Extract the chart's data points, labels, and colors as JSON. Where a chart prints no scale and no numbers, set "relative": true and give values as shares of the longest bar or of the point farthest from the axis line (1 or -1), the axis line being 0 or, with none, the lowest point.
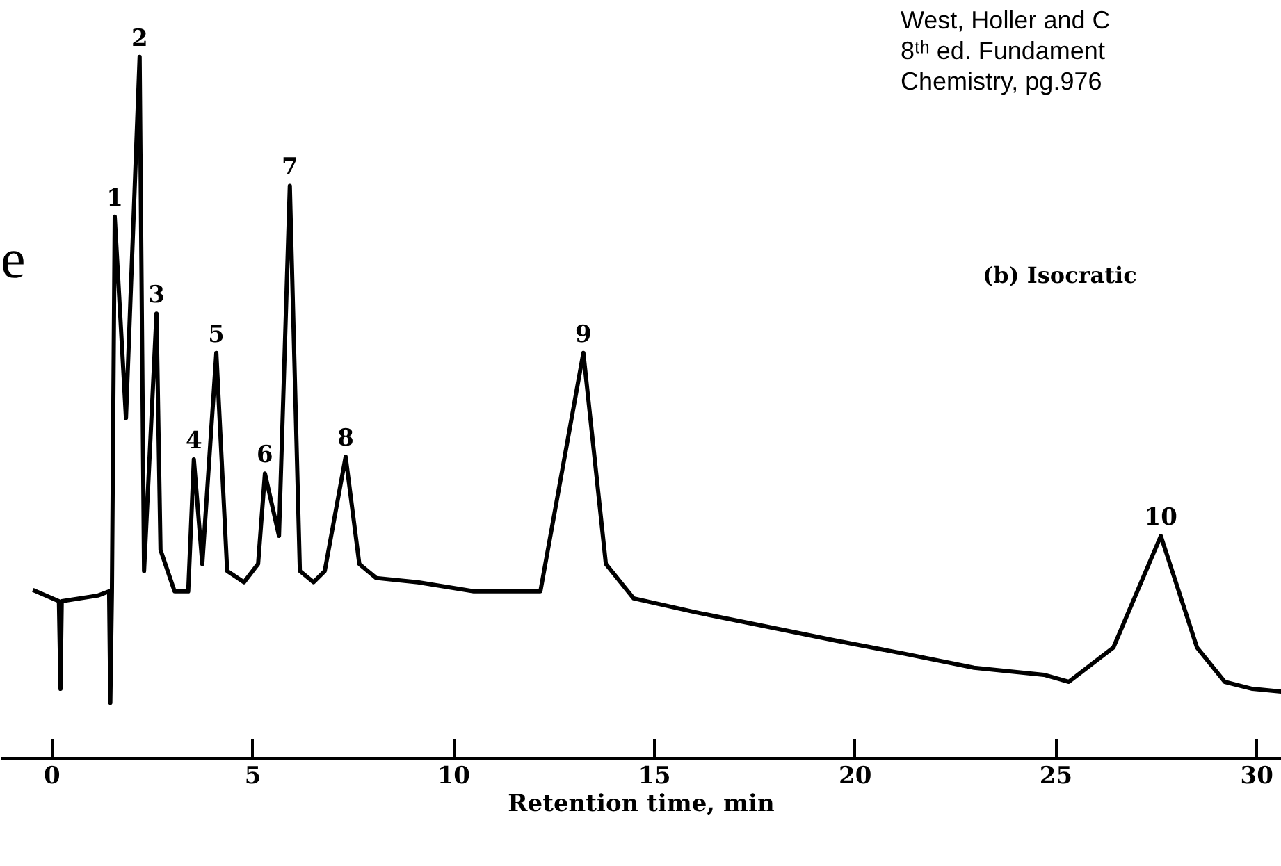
{
  "chart_data": {
    "type": "line",
    "relative": true,
    "xlabel": "Retention time, min",
    "x": [
      -0.48,
      0.17,
      0.21,
      0.24,
      1.14,
      1.42,
      1.45,
      1.49,
      1.56,
      1.84,
      2.18,
      2.29,
      2.6,
      2.7,
      3.05,
      3.39,
      3.53,
      3.74,
      4.09,
      4.36,
      4.78,
      5.13,
      5.3,
      5.65,
      5.92,
      6.17,
      6.51,
      6.79,
      7.31,
      7.65,
      8.07,
      9.11,
      10.5,
      12.16,
      13.23,
      13.79,
      14.48,
      16.04,
      17.77,
      19.5,
      21.23,
      22.96,
      24.7,
      25.32,
      26.43,
      27.61,
      28.51,
      29.2,
      29.89,
      30.62
    ],
    "series": [
      {
        "color": "#000000",
        "values": [
          0.24,
          0.224,
          0.099,
          0.224,
          0.232,
          0.238,
          0.079,
          0.238,
          0.772,
          0.485,
          1.0,
          0.267,
          0.634,
          0.297,
          0.238,
          0.238,
          0.426,
          0.277,
          0.578,
          0.267,
          0.251,
          0.277,
          0.406,
          0.317,
          0.816,
          0.267,
          0.251,
          0.267,
          0.43,
          0.277,
          0.257,
          0.251,
          0.238,
          0.238,
          0.578,
          0.277,
          0.228,
          0.208,
          0.188,
          0.168,
          0.149,
          0.129,
          0.119,
          0.109,
          0.158,
          0.317,
          0.158,
          0.109,
          0.099,
          0.095
        ]
      }
    ],
    "xlim": [
      -1.28,
      30.62
    ],
    "xticks": [
      0,
      5,
      10,
      15,
      20,
      25,
      30
    ],
    "grid": false,
    "marker": "none",
    "line_style": "solid",
    "annotations": [
      {
        "text": "1",
        "x": 1.56,
        "y": 0.772
      },
      {
        "text": "2",
        "x": 2.18,
        "y": 1.0
      },
      {
        "text": "3",
        "x": 2.6,
        "y": 0.634
      },
      {
        "text": "4",
        "x": 3.53,
        "y": 0.426
      },
      {
        "text": "5",
        "x": 4.09,
        "y": 0.578
      },
      {
        "text": "6",
        "x": 5.3,
        "y": 0.406
      },
      {
        "text": "7",
        "x": 5.92,
        "y": 0.816
      },
      {
        "text": "8",
        "x": 7.31,
        "y": 0.43
      },
      {
        "text": "9",
        "x": 13.23,
        "y": 0.578
      },
      {
        "text": "10",
        "x": 27.61,
        "y": 0.317
      },
      "West, Holler and C",
      "8ᵗʰ ed. Fundament",
      "Chemistry, pg.976",
      "(b)  Isocratic",
      "e"
    ]
  }
}
